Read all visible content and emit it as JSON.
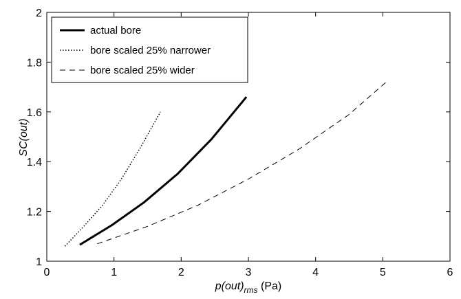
{
  "chart_data": {
    "type": "line",
    "title": "",
    "xlabel": {
      "main": "p(out)",
      "sub": "rms",
      "unit": "(Pa)"
    },
    "ylabel": "SC(out)",
    "xlim": [
      0,
      6
    ],
    "ylim": [
      1,
      2
    ],
    "xticks": [
      0,
      1,
      2,
      3,
      4,
      5,
      6
    ],
    "yticks": [
      1,
      1.2,
      1.4,
      1.6,
      1.8,
      2
    ],
    "xtick_labels": [
      "0",
      "1",
      "2",
      "3",
      "4",
      "5",
      "6"
    ],
    "ytick_labels": [
      "1",
      "1.2",
      "1.4",
      "1.6",
      "1.8",
      "2"
    ],
    "grid": false,
    "legend_position": "top-left",
    "series": [
      {
        "name": "actual bore",
        "style": "solid",
        "line_width": "thick",
        "color": "#000000",
        "x": [
          0.49,
          0.97,
          1.45,
          1.95,
          2.45,
          2.97
        ],
        "y": [
          1.066,
          1.145,
          1.237,
          1.352,
          1.49,
          1.66
        ]
      },
      {
        "name": "bore scaled 25% narrower",
        "style": "dotted",
        "line_width": "normal",
        "color": "#000000",
        "x": [
          0.27,
          0.55,
          0.83,
          1.11,
          1.39,
          1.69
        ],
        "y": [
          1.06,
          1.14,
          1.225,
          1.33,
          1.455,
          1.6
        ]
      },
      {
        "name": "bore scaled 25% wider",
        "style": "dashed",
        "line_width": "normal",
        "color": "#000000",
        "x": [
          0.75,
          1.5,
          2.25,
          3.0,
          3.75,
          4.5,
          5.05
        ],
        "y": [
          1.07,
          1.14,
          1.225,
          1.33,
          1.45,
          1.59,
          1.72
        ]
      }
    ]
  }
}
